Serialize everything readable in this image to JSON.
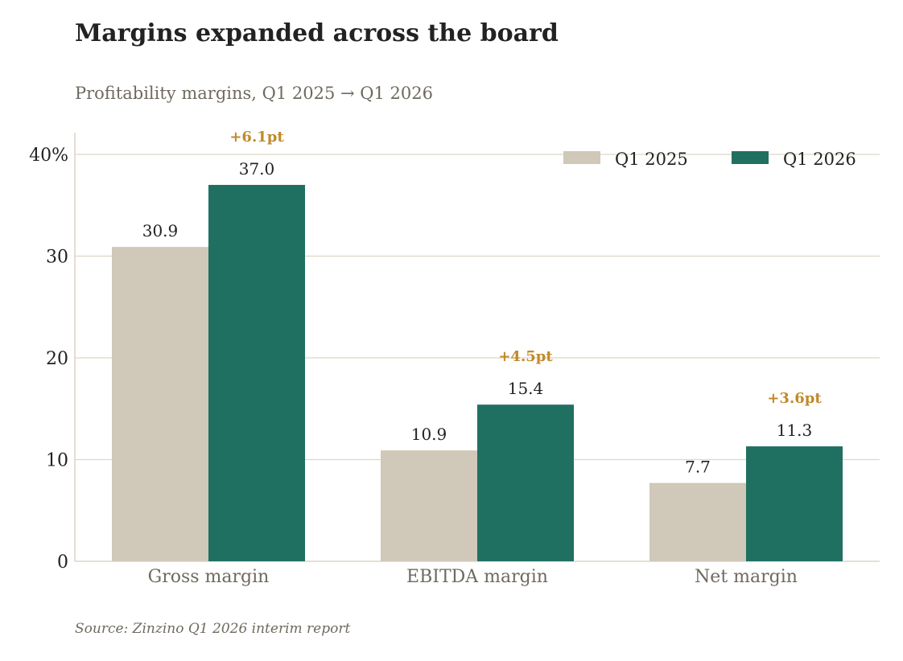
{
  "chart_data": {
    "type": "bar",
    "title": "Margins expanded across the board",
    "subtitle": "Profitability margins, Q1 2025 → Q1 2026",
    "source": "Source: Zinzino Q1 2026 interim report",
    "categories": [
      "Gross margin",
      "EBITDA margin",
      "Net margin"
    ],
    "series": [
      {
        "name": "Q1 2025",
        "values": [
          30.9,
          10.9,
          7.7
        ],
        "labels": [
          "30.9",
          "10.9",
          "7.7"
        ],
        "color": "#d0c8b8"
      },
      {
        "name": "Q1 2026",
        "values": [
          37.0,
          15.4,
          11.3
        ],
        "labels": [
          "37.0",
          "15.4",
          "11.3"
        ],
        "color": "#207062"
      }
    ],
    "annotations": [
      "+6.1pt",
      "+4.5pt",
      "+3.6pt"
    ],
    "annotation_color": "#c08a2a",
    "ylim": [
      0,
      40
    ],
    "yticks": [
      0,
      10,
      20,
      30,
      40
    ],
    "ytick_labels": [
      "0",
      "10",
      "20",
      "30",
      "40%"
    ],
    "xlabel": "",
    "ylabel": "",
    "grid": true,
    "legend_position": "top-right"
  }
}
